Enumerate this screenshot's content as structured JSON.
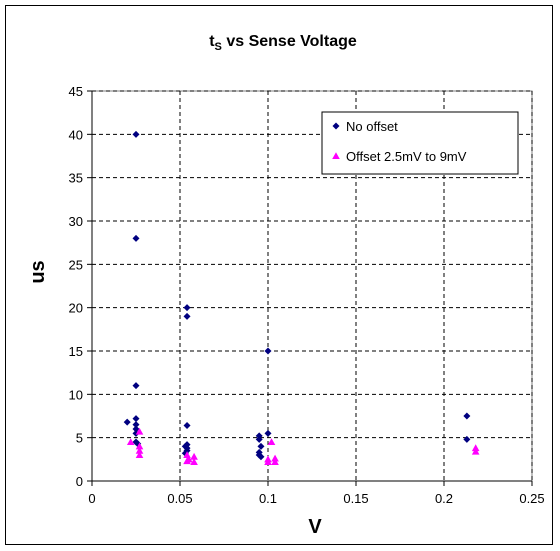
{
  "chart_data": {
    "type": "scatter",
    "title_main": "t",
    "title_sub": "S",
    "title_rest": " vs Sense Voltage",
    "xlabel": "V",
    "ylabel": "us",
    "xlim": [
      0,
      0.25
    ],
    "ylim": [
      0,
      45
    ],
    "xticks": [
      0,
      0.05,
      0.1,
      0.15,
      0.2,
      0.25
    ],
    "xtick_labels": [
      "0",
      "0.05",
      "0.1",
      "0.15",
      "0.2",
      "0.25"
    ],
    "yticks": [
      0,
      5,
      10,
      15,
      20,
      25,
      30,
      35,
      40,
      45
    ],
    "ytick_labels": [
      "0",
      "5",
      "10",
      "15",
      "20",
      "25",
      "30",
      "35",
      "40",
      "45"
    ],
    "grid": true,
    "legend_position": "top-right",
    "series": [
      {
        "name": "No offset",
        "marker": "diamond",
        "color": "#000080",
        "points": [
          [
            0.025,
            40
          ],
          [
            0.025,
            28
          ],
          [
            0.025,
            11
          ],
          [
            0.025,
            7.2
          ],
          [
            0.025,
            6.5
          ],
          [
            0.025,
            6.0
          ],
          [
            0.025,
            5.5
          ],
          [
            0.025,
            4.5
          ],
          [
            0.026,
            4.3
          ],
          [
            0.02,
            6.8
          ],
          [
            0.054,
            20
          ],
          [
            0.054,
            19
          ],
          [
            0.054,
            6.4
          ],
          [
            0.054,
            4.2
          ],
          [
            0.053,
            4.0
          ],
          [
            0.054,
            3.8
          ],
          [
            0.054,
            3.5
          ],
          [
            0.053,
            3.2
          ],
          [
            0.1,
            15
          ],
          [
            0.1,
            5.5
          ],
          [
            0.095,
            5.2
          ],
          [
            0.095,
            4.8
          ],
          [
            0.096,
            4.0
          ],
          [
            0.095,
            3.3
          ],
          [
            0.095,
            3.0
          ],
          [
            0.096,
            2.8
          ],
          [
            0.213,
            7.5
          ],
          [
            0.213,
            4.8
          ]
        ]
      },
      {
        "name": "Offset 2.5mV to 9mV",
        "marker": "triangle",
        "color": "#ff00ff",
        "points": [
          [
            0.022,
            4.5
          ],
          [
            0.027,
            5.7
          ],
          [
            0.027,
            4.0
          ],
          [
            0.027,
            3.5
          ],
          [
            0.027,
            3.0
          ],
          [
            0.054,
            3.0
          ],
          [
            0.055,
            2.5
          ],
          [
            0.054,
            2.3
          ],
          [
            0.058,
            2.8
          ],
          [
            0.058,
            2.2
          ],
          [
            0.1,
            2.5
          ],
          [
            0.1,
            2.2
          ],
          [
            0.102,
            4.5
          ],
          [
            0.104,
            2.6
          ],
          [
            0.104,
            2.2
          ],
          [
            0.218,
            3.8
          ],
          [
            0.218,
            3.4
          ]
        ]
      }
    ]
  }
}
